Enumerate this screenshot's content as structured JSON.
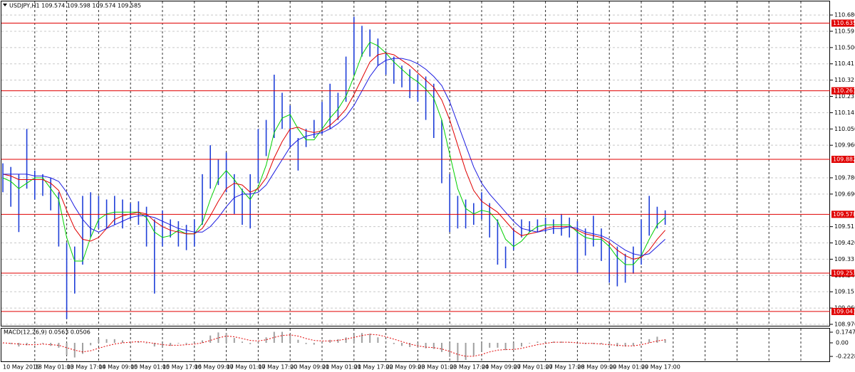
{
  "chart_data": [
    {
      "type": "hilo",
      "title": "USDJPY,H1  109.574 109.598 109.574 109.585",
      "color": "#1f3fd8",
      "categories": [
        "10 May 2019",
        null,
        null,
        null,
        "13 May 01:00",
        null,
        null,
        null,
        "13 May 17:00",
        null,
        null,
        null,
        "14 May 09:00",
        null,
        null,
        null,
        "15 May 01:00",
        null,
        null,
        null,
        "15 May 17:00",
        null,
        null,
        null,
        "16 May 09:00",
        null,
        null,
        null,
        "17 May 01:00",
        null,
        null,
        null,
        "17 May 17:00",
        null,
        null,
        null,
        "20 May 09:00",
        null,
        null,
        null,
        "21 May 01:00",
        null,
        null,
        null,
        "21 May 17:00",
        null,
        null,
        null,
        "22 May 09:00",
        null,
        null,
        null,
        "23 May 01:00",
        null,
        null,
        null,
        "23 May 17:00",
        null,
        null,
        null,
        "24 May 09:00",
        null,
        null,
        null,
        "27 May 01:00",
        null,
        null,
        null,
        "27 May 17:00",
        null,
        null,
        null,
        "28 May 09:00",
        null,
        null,
        null,
        "29 May 01:00",
        null,
        null,
        null,
        "29 May 17:00",
        null,
        null,
        null
      ],
      "high": [
        109.86,
        109.84,
        109.8,
        110.05,
        109.82,
        109.8,
        109.78,
        109.7,
        109.42,
        109.4,
        109.68,
        109.7,
        109.68,
        109.66,
        109.68,
        109.66,
        109.64,
        109.65,
        109.62,
        109.55,
        109.6,
        109.55,
        109.54,
        109.52,
        109.55,
        109.8,
        109.96,
        109.88,
        109.92,
        109.8,
        109.72,
        109.8,
        110.05,
        110.1,
        110.35,
        110.25,
        110.18,
        110.0,
        110.05,
        110.1,
        110.2,
        110.3,
        110.25,
        110.45,
        110.67,
        110.62,
        110.6,
        110.55,
        110.48,
        110.45,
        110.4,
        110.38,
        110.35,
        110.34,
        110.3,
        110.1,
        109.8,
        109.68,
        109.66,
        109.64,
        109.7,
        109.64,
        109.55,
        109.4,
        109.5,
        109.55,
        109.54,
        109.55,
        109.56,
        109.55,
        109.58,
        109.56,
        109.54,
        109.5,
        109.57,
        109.5,
        109.42,
        109.4,
        109.36,
        109.4,
        109.55,
        109.68,
        109.62,
        109.6
      ],
      "low": [
        109.7,
        109.62,
        109.48,
        109.72,
        109.66,
        109.68,
        109.6,
        109.4,
        109.0,
        109.14,
        109.3,
        109.45,
        109.5,
        109.5,
        109.52,
        109.5,
        109.55,
        109.52,
        109.4,
        109.14,
        109.4,
        109.45,
        109.4,
        109.38,
        109.4,
        109.52,
        109.72,
        109.74,
        109.7,
        109.58,
        109.52,
        109.5,
        109.75,
        109.9,
        110.0,
        110.05,
        109.95,
        109.82,
        109.95,
        110.0,
        110.02,
        110.05,
        110.1,
        110.2,
        110.35,
        110.45,
        110.45,
        110.4,
        110.35,
        110.3,
        110.28,
        110.22,
        110.2,
        110.1,
        110.0,
        109.75,
        109.48,
        109.5,
        109.5,
        109.52,
        109.55,
        109.45,
        109.3,
        109.28,
        109.38,
        109.45,
        109.48,
        109.48,
        109.48,
        109.47,
        109.46,
        109.45,
        109.25,
        109.35,
        109.4,
        109.32,
        109.2,
        109.18,
        109.2,
        109.25,
        109.3,
        109.46,
        109.5,
        109.52
      ],
      "series": [
        {
          "color": "#00d000",
          "values": [
            109.78,
            109.76,
            109.72,
            109.75,
            109.78,
            109.78,
            109.72,
            109.66,
            109.45,
            109.32,
            109.32,
            109.45,
            109.55,
            109.58,
            109.59,
            109.59,
            109.59,
            109.59,
            109.56,
            109.48,
            109.45,
            109.46,
            109.49,
            109.47,
            109.47,
            109.53,
            109.66,
            109.77,
            109.82,
            109.77,
            109.71,
            109.66,
            109.73,
            109.85,
            110.03,
            110.11,
            110.13,
            110.05,
            109.99,
            109.99,
            110.05,
            110.11,
            110.16,
            110.23,
            110.34,
            110.46,
            110.53,
            110.51,
            110.47,
            110.42,
            110.38,
            110.34,
            110.31,
            110.27,
            110.22,
            110.1,
            109.91,
            109.72,
            109.61,
            109.58,
            109.6,
            109.59,
            109.54,
            109.44,
            109.4,
            109.43,
            109.48,
            109.51,
            109.52,
            109.52,
            109.52,
            109.52,
            109.48,
            109.45,
            109.44,
            109.44,
            109.4,
            109.34,
            109.3,
            109.3,
            109.35,
            109.44,
            109.52,
            109.56
          ]
        },
        {
          "color": "#e00000",
          "values": [
            109.8,
            109.79,
            109.77,
            109.77,
            109.77,
            109.77,
            109.75,
            109.71,
            109.6,
            109.5,
            109.44,
            109.43,
            109.45,
            109.5,
            109.55,
            109.57,
            109.58,
            109.59,
            109.58,
            109.54,
            109.51,
            109.49,
            109.48,
            109.47,
            109.47,
            109.5,
            109.57,
            109.65,
            109.72,
            109.75,
            109.74,
            109.7,
            109.72,
            109.78,
            109.89,
            109.98,
            110.05,
            110.06,
            110.04,
            110.03,
            110.04,
            110.07,
            110.11,
            110.16,
            110.24,
            110.33,
            110.42,
            110.46,
            110.47,
            110.46,
            110.43,
            110.4,
            110.36,
            110.32,
            110.28,
            110.21,
            110.1,
            109.96,
            109.82,
            109.71,
            109.65,
            109.62,
            109.59,
            109.54,
            109.49,
            109.46,
            109.47,
            109.48,
            109.5,
            109.51,
            109.51,
            109.51,
            109.49,
            109.47,
            109.46,
            109.45,
            109.42,
            109.38,
            109.35,
            109.33,
            109.34,
            109.38,
            109.44,
            109.49
          ]
        },
        {
          "color": "#1c1ce0",
          "values": [
            109.8,
            109.8,
            109.8,
            109.8,
            109.79,
            109.79,
            109.78,
            109.76,
            109.7,
            109.62,
            109.55,
            109.5,
            109.48,
            109.5,
            109.52,
            109.54,
            109.56,
            109.57,
            109.57,
            109.56,
            109.54,
            109.52,
            109.5,
            109.49,
            109.48,
            109.48,
            109.51,
            109.56,
            109.62,
            109.67,
            109.69,
            109.69,
            109.7,
            109.74,
            109.81,
            109.88,
            109.95,
            109.99,
            110.01,
            110.02,
            110.03,
            110.05,
            110.08,
            110.12,
            110.18,
            110.26,
            110.34,
            110.4,
            110.43,
            110.44,
            110.44,
            110.43,
            110.41,
            110.38,
            110.34,
            110.29,
            110.2,
            110.08,
            109.96,
            109.84,
            109.75,
            109.69,
            109.64,
            109.59,
            109.54,
            109.5,
            109.49,
            109.48,
            109.49,
            109.5,
            109.5,
            109.51,
            109.5,
            109.48,
            109.47,
            109.46,
            109.44,
            109.41,
            109.38,
            109.36,
            109.35,
            109.36,
            109.4,
            109.44
          ]
        }
      ],
      "levels": [
        110.635,
        110.261,
        109.882,
        109.578,
        109.253,
        109.041
      ],
      "level_color": "#e00000",
      "ylim": [
        108.962,
        110.755
      ],
      "yticks": [
        {
          "value": 108.97,
          "label": "108.970"
        },
        {
          "value": 109.06,
          "label": "109.060"
        },
        109.15,
        {
          "value": 109.24,
          "label": "109.240"
        },
        109.33,
        {
          "value": 109.42,
          "label": "109.420"
        },
        109.51,
        {
          "value": 109.69,
          "label": "109.690"
        },
        {
          "value": 109.78,
          "label": "109.780"
        },
        {
          "value": 109.96,
          "label": "109.960"
        },
        {
          "value": 110.05,
          "label": "110.050"
        },
        110.14,
        110.23,
        110.32,
        110.41,
        {
          "value": 110.5,
          "label": "110.500"
        },
        110.59,
        {
          "value": 110.68,
          "label": "110.680"
        }
      ],
      "grid": true
    },
    {
      "type": "macd",
      "title": "MACD(12,26,9) 0.0563 0.0506",
      "ylim": [
        -0.315,
        0.233
      ],
      "yticks": [
        0.1747,
        {
          "value": 0,
          "label": "0.00"
        },
        -0.2228
      ],
      "histogram": {
        "color": "#a0a0a0",
        "values": [
          0,
          -0.02,
          -0.06,
          -0.04,
          -0.01,
          -0.01,
          -0.05,
          -0.08,
          -0.2,
          -0.24,
          -0.18,
          -0.04,
          0.06,
          0.06,
          0.06,
          0.04,
          0.02,
          0.02,
          -0.01,
          -0.06,
          -0.07,
          -0.05,
          -0.01,
          -0.02,
          -0.01,
          0.04,
          0.12,
          0.17,
          0.16,
          0.08,
          0.02,
          -0.02,
          0.02,
          0.09,
          0.18,
          0.18,
          0.14,
          0.05,
          -0.02,
          -0.03,
          0.02,
          0.05,
          0.06,
          0.09,
          0.13,
          0.16,
          0.15,
          0.09,
          0.03,
          -0.02,
          -0.05,
          -0.07,
          -0.08,
          -0.09,
          -0.1,
          -0.15,
          -0.23,
          -0.3,
          -0.28,
          -0.21,
          -0.12,
          -0.08,
          -0.08,
          -0.12,
          -0.11,
          -0.06,
          -0.01,
          0.02,
          0.02,
          0.02,
          0.02,
          0.01,
          -0.02,
          -0.02,
          -0.02,
          -0.02,
          -0.04,
          -0.06,
          -0.06,
          -0.05,
          0.0,
          0.06,
          0.1,
          0.0563
        ]
      },
      "signal": {
        "color": "#e00000",
        "values": [
          0.0,
          -0.01,
          -0.02,
          -0.03,
          -0.03,
          -0.02,
          -0.03,
          -0.04,
          -0.08,
          -0.12,
          -0.15,
          -0.13,
          -0.09,
          -0.05,
          -0.02,
          0.0,
          0.01,
          0.02,
          0.01,
          -0.01,
          -0.03,
          -0.04,
          -0.04,
          -0.03,
          -0.02,
          0.0,
          0.04,
          0.08,
          0.11,
          0.1,
          0.07,
          0.04,
          0.03,
          0.05,
          0.09,
          0.12,
          0.13,
          0.11,
          0.07,
          0.04,
          0.03,
          0.03,
          0.04,
          0.06,
          0.09,
          0.12,
          0.14,
          0.13,
          0.1,
          0.06,
          0.02,
          -0.02,
          -0.05,
          -0.07,
          -0.08,
          -0.1,
          -0.14,
          -0.19,
          -0.22,
          -0.22,
          -0.19,
          -0.15,
          -0.12,
          -0.11,
          -0.11,
          -0.09,
          -0.06,
          -0.03,
          -0.01,
          0.01,
          0.01,
          0.01,
          0.0,
          -0.01,
          -0.01,
          -0.02,
          -0.03,
          -0.04,
          -0.05,
          -0.05,
          -0.03,
          0.0,
          0.03,
          0.0506
        ]
      }
    }
  ]
}
